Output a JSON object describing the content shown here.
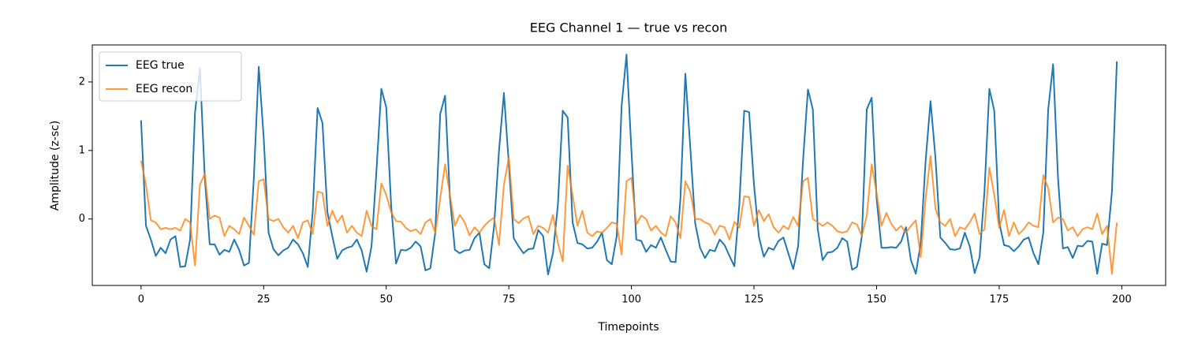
{
  "chart_data": {
    "type": "line",
    "title": "EEG Channel 1 — true vs recon",
    "xlabel": "Timepoints",
    "ylabel": "Amplitude (z-sc)",
    "x": [
      0,
      1,
      2,
      3,
      4,
      5,
      6,
      7,
      8,
      9,
      10,
      11,
      12,
      13,
      14,
      15,
      16,
      17,
      18,
      19,
      20,
      21,
      22,
      23,
      24,
      25,
      26,
      27,
      28,
      29,
      30,
      31,
      32,
      33,
      34,
      35,
      36,
      37,
      38,
      39,
      40,
      41,
      42,
      43,
      44,
      45,
      46,
      47,
      48,
      49,
      50,
      51,
      52,
      53,
      54,
      55,
      56,
      57,
      58,
      59,
      60,
      61,
      62,
      63,
      64,
      65,
      66,
      67,
      68,
      69,
      70,
      71,
      72,
      73,
      74,
      75,
      76,
      77,
      78,
      79,
      80,
      81,
      82,
      83,
      84,
      85,
      86,
      87,
      88,
      89,
      90,
      91,
      92,
      93,
      94,
      95,
      96,
      97,
      98,
      99,
      100,
      101,
      102,
      103,
      104,
      105,
      106,
      107,
      108,
      109,
      110,
      111,
      112,
      113,
      114,
      115,
      116,
      117,
      118,
      119,
      120,
      121,
      122,
      123,
      124,
      125,
      126,
      127,
      128,
      129,
      130,
      131,
      132,
      133,
      134,
      135,
      136,
      137,
      138,
      139,
      140,
      141,
      142,
      143,
      144,
      145,
      146,
      147,
      148,
      149,
      150,
      151,
      152,
      153,
      154,
      155,
      156,
      157,
      158,
      159,
      160,
      161,
      162,
      163,
      164,
      165,
      166,
      167,
      168,
      169,
      170,
      171,
      172,
      173,
      174,
      175,
      176,
      177,
      178,
      179,
      180,
      181,
      182,
      183,
      184,
      185,
      186,
      187,
      188,
      189,
      190,
      191,
      192,
      193,
      194,
      195,
      196,
      197,
      198,
      199
    ],
    "series": [
      {
        "name": "EEG true",
        "color": "#1f77b4",
        "values": [
          1.44,
          -0.1,
          -0.3,
          -0.54,
          -0.42,
          -0.5,
          -0.3,
          -0.25,
          -0.7,
          -0.69,
          -0.3,
          1.55,
          2.2,
          0.6,
          -0.37,
          -0.37,
          -0.52,
          -0.45,
          -0.48,
          -0.3,
          -0.45,
          -0.68,
          -0.64,
          0.6,
          2.22,
          1.2,
          -0.2,
          -0.44,
          -0.53,
          -0.46,
          -0.42,
          -0.3,
          -0.37,
          -0.5,
          -0.7,
          0.1,
          1.62,
          1.4,
          0.1,
          -0.25,
          -0.58,
          -0.46,
          -0.42,
          -0.4,
          -0.3,
          -0.46,
          -0.77,
          -0.4,
          0.7,
          1.9,
          1.63,
          0.2,
          -0.65,
          -0.45,
          -0.46,
          -0.42,
          -0.33,
          -0.4,
          -0.75,
          -0.72,
          -0.2,
          1.53,
          1.8,
          0.3,
          -0.45,
          -0.5,
          -0.46,
          -0.45,
          -0.28,
          -0.2,
          -0.66,
          -0.72,
          -0.1,
          1.0,
          1.84,
          0.8,
          -0.28,
          -0.4,
          -0.5,
          -0.44,
          -0.43,
          -0.16,
          -0.25,
          -0.81,
          -0.5,
          0.2,
          1.58,
          1.48,
          -0.05,
          -0.35,
          -0.37,
          -0.43,
          -0.42,
          -0.33,
          -0.2,
          -0.6,
          -0.66,
          -0.25,
          1.65,
          2.4,
          1.0,
          -0.3,
          -0.32,
          -0.48,
          -0.38,
          -0.42,
          -0.27,
          -0.45,
          -0.62,
          -0.63,
          0.3,
          2.12,
          1.05,
          -0.06,
          -0.42,
          -0.57,
          -0.45,
          -0.47,
          -0.3,
          -0.38,
          -0.54,
          -0.69,
          0.2,
          1.58,
          1.56,
          0.5,
          -0.26,
          -0.55,
          -0.42,
          -0.45,
          -0.32,
          -0.27,
          -0.5,
          -0.73,
          -0.4,
          0.85,
          1.89,
          1.6,
          -0.15,
          -0.6,
          -0.49,
          -0.48,
          -0.42,
          -0.28,
          -0.33,
          -0.74,
          -0.7,
          -0.25,
          1.6,
          1.77,
          0.3,
          -0.42,
          -0.42,
          -0.41,
          -0.42,
          -0.33,
          -0.12,
          -0.6,
          -0.8,
          -0.35,
          0.85,
          1.72,
          0.9,
          -0.27,
          -0.35,
          -0.44,
          -0.45,
          -0.43,
          -0.2,
          -0.4,
          -0.79,
          -0.56,
          0.4,
          1.9,
          1.58,
          -0.05,
          -0.38,
          -0.4,
          -0.47,
          -0.4,
          -0.3,
          -0.27,
          -0.5,
          -0.66,
          -0.2,
          1.6,
          2.26,
          0.6,
          -0.43,
          -0.41,
          -0.57,
          -0.39,
          -0.4,
          -0.32,
          -0.33,
          -0.8,
          -0.36,
          -0.38,
          0.4,
          2.3
        ]
      },
      {
        "name": "EEG recon",
        "color": "#ff7f0e",
        "values": [
          0.85,
          0.5,
          -0.02,
          -0.05,
          -0.15,
          -0.13,
          -0.15,
          -0.13,
          -0.17,
          0.0,
          -0.05,
          -0.68,
          0.5,
          0.66,
          0.0,
          0.05,
          0.02,
          -0.25,
          -0.1,
          -0.15,
          -0.22,
          0.02,
          -0.1,
          -0.23,
          0.55,
          0.58,
          0.0,
          -0.03,
          0.0,
          -0.12,
          -0.2,
          -0.1,
          -0.28,
          -0.05,
          -0.02,
          -0.22,
          0.4,
          0.38,
          -0.1,
          0.12,
          -0.05,
          0.05,
          -0.2,
          -0.1,
          -0.2,
          -0.25,
          0.12,
          -0.1,
          -0.15,
          0.52,
          0.35,
          0.1,
          -0.03,
          -0.04,
          -0.13,
          -0.18,
          -0.15,
          -0.22,
          -0.05,
          0.0,
          -0.2,
          0.3,
          0.8,
          0.35,
          -0.1,
          0.06,
          -0.05,
          -0.24,
          -0.12,
          -0.2,
          -0.1,
          -0.03,
          0.02,
          -0.38,
          0.5,
          0.9,
          0.0,
          -0.06,
          0.01,
          0.04,
          -0.22,
          -0.1,
          -0.13,
          -0.2,
          0.06,
          -0.35,
          -0.62,
          0.78,
          0.35,
          -0.1,
          0.12,
          -0.2,
          -0.25,
          -0.18,
          -0.2,
          -0.13,
          -0.05,
          -0.07,
          -0.52,
          0.55,
          0.6,
          -0.08,
          0.05,
          0.0,
          -0.17,
          -0.1,
          -0.2,
          -0.25,
          0.04,
          -0.05,
          -0.28,
          0.55,
          0.4,
          0.0,
          0.0,
          -0.05,
          -0.08,
          -0.23,
          -0.1,
          -0.12,
          -0.3,
          -0.04,
          -0.13,
          0.33,
          0.32,
          -0.1,
          0.13,
          -0.03,
          0.07,
          -0.12,
          -0.2,
          -0.1,
          -0.15,
          0.03,
          -0.1,
          0.55,
          0.6,
          0.0,
          -0.05,
          -0.1,
          -0.05,
          -0.1,
          -0.18,
          -0.2,
          -0.18,
          -0.05,
          -0.08,
          -0.25,
          0.05,
          0.8,
          0.38,
          -0.1,
          0.09,
          -0.07,
          -0.17,
          -0.1,
          -0.2,
          -0.1,
          -0.02,
          -0.56,
          0.3,
          0.92,
          0.15,
          -0.05,
          -0.1,
          0.0,
          -0.25,
          -0.12,
          -0.15,
          -0.05,
          0.08,
          -0.22,
          -0.15,
          0.75,
          0.35,
          -0.13,
          0.13,
          -0.25,
          -0.05,
          -0.22,
          -0.15,
          -0.05,
          -0.1,
          -0.12,
          0.64,
          0.45,
          -0.05,
          0.02,
          0.0,
          -0.17,
          -0.12,
          -0.25,
          -0.15,
          -0.12,
          -0.15,
          0.08,
          -0.22,
          -0.1,
          -0.8,
          -0.05
        ]
      }
    ],
    "xlim": [
      -9.95,
      208.95
    ],
    "xticks": [
      0,
      25,
      50,
      75,
      100,
      125,
      150,
      175,
      200
    ],
    "ylim": [
      -0.97,
      2.54
    ],
    "yticks": [
      0,
      1,
      2
    ],
    "grid": false,
    "legend": "upper left"
  }
}
